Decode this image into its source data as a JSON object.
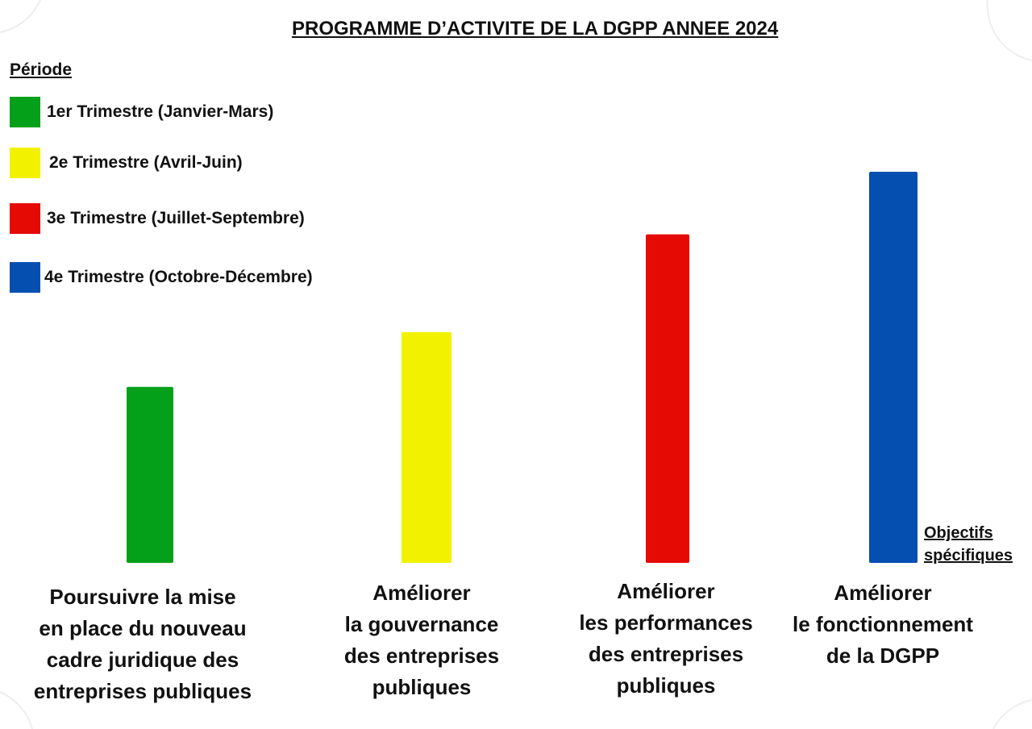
{
  "chart_data": {
    "type": "bar",
    "title": "PROGRAMME D’ACTIVITE DE LA DGPP ANNEE 2024",
    "legend_title": "Période",
    "legend_placement": "top-left",
    "grid": false,
    "xlabel": "Objectifs spécifiques",
    "ylabel": "",
    "ylim": [
      0,
      100
    ],
    "categories": [
      [
        "Poursuivre la mise",
        "en place du nouveau",
        "cadre juridique des",
        "entreprises publiques"
      ],
      [
        "Améliorer",
        "la gouvernance",
        "des entreprises",
        "publiques"
      ],
      [
        "Améliorer",
        "les performances",
        "des entreprises",
        "publiques"
      ],
      [
        "Améliorer",
        "le fonctionnement",
        "de la DGPP"
      ]
    ],
    "series": [
      {
        "name": "1er Trimestre (Janvier-Mars)",
        "color": "#05a019"
      },
      {
        "name": "2e Trimestre (Avril-Juin)",
        "color": "#f2f200"
      },
      {
        "name": "3e Trimestre (Juillet-Septembre)",
        "color": "#e60a05"
      },
      {
        "name": "4e Trimestre (Octobre-Décembre)",
        "color": "#044fb0"
      }
    ],
    "values": [
      45,
      59,
      84,
      100
    ]
  }
}
